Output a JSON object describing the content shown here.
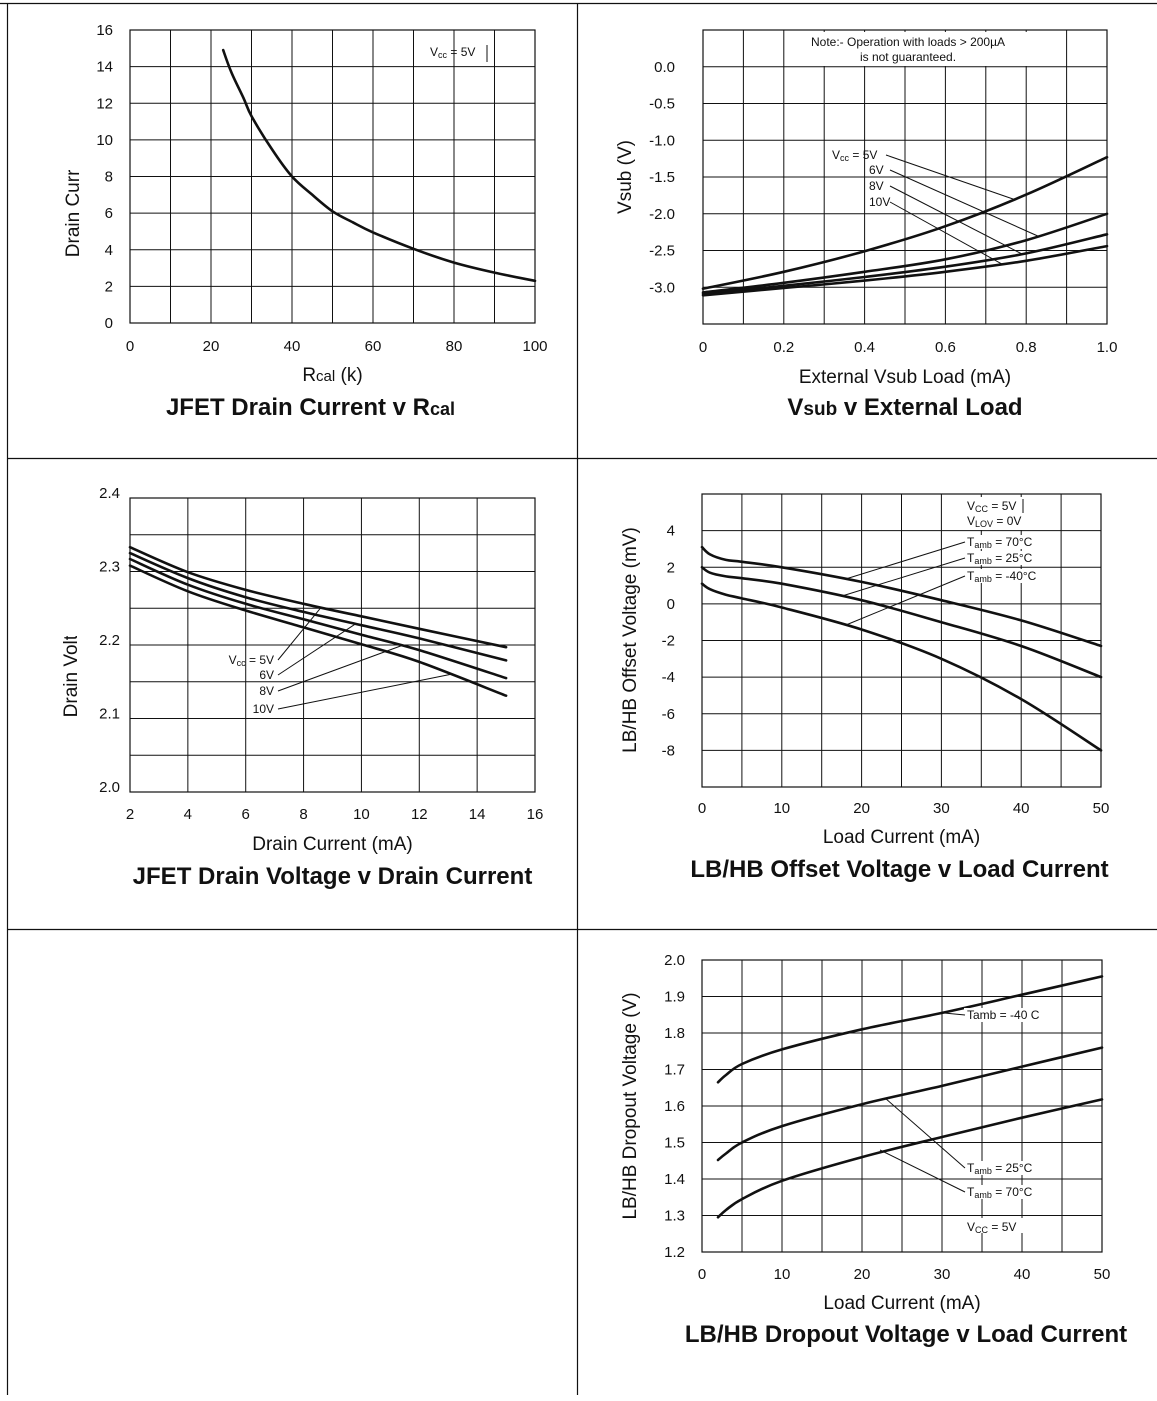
{
  "chart_data": [
    {
      "type": "line",
      "title": "JFET Drain Current v Rcal",
      "xlabel": "Rcal (k)",
      "ylabel": "Drain Current (mA)",
      "xlim": [
        0,
        100
      ],
      "ylim": [
        0,
        16
      ],
      "xticks": [
        0,
        20,
        40,
        60,
        80,
        100
      ],
      "yticks": [
        0,
        2,
        4,
        6,
        8,
        10,
        12,
        14,
        16
      ],
      "grid": true,
      "series": [
        {
          "x": [
            23,
            25,
            28,
            30,
            35,
            40,
            45,
            50,
            55,
            60,
            70,
            80,
            90,
            100
          ],
          "y": [
            14.9,
            13.7,
            12.3,
            11.3,
            9.5,
            8.0,
            7.0,
            6.1,
            5.5,
            4.95,
            4.05,
            3.3,
            2.75,
            2.3
          ]
        }
      ],
      "annotations": [
        {
          "text": "Vcc = 5V"
        }
      ]
    },
    {
      "type": "line",
      "title": "Vsub v External Load",
      "xlabel": "External Vsub Load (mA)",
      "ylabel": "Vsub (V)",
      "xlim": [
        0,
        1.0
      ],
      "ylim": [
        -3.5,
        0.5
      ],
      "xticks": [
        0,
        0.2,
        0.4,
        0.6,
        0.8,
        1.0
      ],
      "xtick_labels": [
        "0",
        "0.2",
        "0.4",
        "0.6",
        "0.8",
        "1.0"
      ],
      "yticks": [
        0.0,
        -0.5,
        -1.0,
        -1.5,
        -2.0,
        -2.5,
        -3.0
      ],
      "ytick_labels": [
        "0.0",
        "-0.5",
        "-1.0",
        "-1.5",
        "-2.0",
        "-2.5",
        "-3.0"
      ],
      "grid": true,
      "note": [
        "Note:- Operation with loads > 200µA",
        "is not guaranteed."
      ],
      "series": [
        {
          "name": "Vcc = 5V",
          "x": [
            0,
            0.2,
            0.4,
            0.6,
            0.8,
            1.0
          ],
          "y": [
            -3.02,
            -2.79,
            -2.51,
            -2.17,
            -1.74,
            -1.23
          ]
        },
        {
          "name": "6V",
          "x": [
            0,
            0.2,
            0.4,
            0.6,
            0.8,
            1.0
          ],
          "y": [
            -3.07,
            -2.94,
            -2.79,
            -2.62,
            -2.36,
            -2.0
          ]
        },
        {
          "name": "8V",
          "x": [
            0,
            0.2,
            0.4,
            0.6,
            0.8,
            1.0
          ],
          "y": [
            -3.09,
            -2.98,
            -2.86,
            -2.72,
            -2.54,
            -2.28
          ]
        },
        {
          "name": "10V",
          "x": [
            0,
            0.2,
            0.4,
            0.6,
            0.8,
            1.0
          ],
          "y": [
            -3.11,
            -3.01,
            -2.91,
            -2.79,
            -2.64,
            -2.44
          ]
        }
      ]
    },
    {
      "type": "line",
      "title": "JFET Drain Voltage v Drain Current",
      "xlabel": "Drain Current (mA)",
      "ylabel": "Drain Voltage (V)",
      "xlim": [
        2,
        16
      ],
      "ylim": [
        2.0,
        2.4
      ],
      "xticks": [
        2,
        4,
        6,
        8,
        10,
        12,
        14,
        16
      ],
      "yticks": [
        2.0,
        2.1,
        2.2,
        2.3,
        2.4
      ],
      "ytick_labels": [
        "2.0",
        "2.1",
        "2.2",
        "2.3",
        "2.4"
      ],
      "grid": true,
      "series": [
        {
          "name": "Vcc = 5V",
          "x": [
            2,
            4,
            6,
            8,
            10,
            12,
            15
          ],
          "y": [
            2.333,
            2.299,
            2.275,
            2.256,
            2.239,
            2.222,
            2.197
          ]
        },
        {
          "name": "6V",
          "x": [
            2,
            4,
            6,
            8,
            10,
            12,
            15
          ],
          "y": [
            2.325,
            2.291,
            2.265,
            2.245,
            2.227,
            2.209,
            2.179
          ]
        },
        {
          "name": "8V",
          "x": [
            2,
            4,
            6,
            8,
            10,
            12,
            15
          ],
          "y": [
            2.317,
            2.282,
            2.256,
            2.235,
            2.214,
            2.193,
            2.155
          ]
        },
        {
          "name": "10V",
          "x": [
            2,
            4,
            6,
            8,
            10,
            12,
            15
          ],
          "y": [
            2.308,
            2.273,
            2.247,
            2.224,
            2.201,
            2.177,
            2.131
          ]
        }
      ]
    },
    {
      "type": "line",
      "title": "LB/HB Offset Voltage v Load Current",
      "xlabel": "Load Current (mA)",
      "ylabel": "LB/HB Offset Voltage (mV)",
      "xlim": [
        0,
        50
      ],
      "ylim": [
        -10,
        6
      ],
      "xticks": [
        0,
        10,
        20,
        30,
        40,
        50
      ],
      "yticks": [
        4,
        2,
        0,
        -2,
        -4,
        -6,
        -8
      ],
      "grid": true,
      "legend_notes": [
        "VCC = 5V",
        "VLOV = 0V"
      ],
      "series": [
        {
          "name": "Tamb = 70°C",
          "x": [
            0,
            1,
            3,
            5,
            10,
            20,
            30,
            40,
            50
          ],
          "y": [
            3.1,
            2.7,
            2.4,
            2.3,
            2.0,
            1.2,
            0.2,
            -0.9,
            -2.3
          ]
        },
        {
          "name": "Tamb = 25°C",
          "x": [
            0,
            1,
            3,
            5,
            10,
            20,
            30,
            40,
            50
          ],
          "y": [
            2.0,
            1.7,
            1.5,
            1.4,
            1.1,
            0.2,
            -1.0,
            -2.3,
            -4.0
          ]
        },
        {
          "name": "Tamb = -40°C",
          "x": [
            0,
            1,
            3,
            5,
            10,
            20,
            30,
            40,
            50
          ],
          "y": [
            1.1,
            0.8,
            0.5,
            0.3,
            -0.2,
            -1.4,
            -3.0,
            -5.2,
            -8.0
          ]
        }
      ]
    },
    {
      "type": "line",
      "title": "LB/HB Dropout Voltage v Load Current",
      "xlabel": "Load Current (mA)",
      "ylabel": "LB/HB Dropout Voltage (V)",
      "xlim": [
        0,
        50
      ],
      "ylim": [
        1.2,
        2.0
      ],
      "xticks": [
        0,
        10,
        20,
        30,
        40,
        50
      ],
      "yticks": [
        1.2,
        1.3,
        1.4,
        1.5,
        1.6,
        1.7,
        1.8,
        1.9,
        2.0
      ],
      "ytick_labels": [
        "1.2",
        "1.3",
        "1.4",
        "1.5",
        "1.6",
        "1.7",
        "1.8",
        "1.9",
        "2.0"
      ],
      "grid": true,
      "legend_notes": [
        "VCC = 5V"
      ],
      "series": [
        {
          "name": "Tamb = -40 C",
          "x": [
            2,
            3,
            5,
            10,
            20,
            30,
            40,
            50
          ],
          "y": [
            1.665,
            1.685,
            1.715,
            1.755,
            1.81,
            1.855,
            1.905,
            1.955
          ]
        },
        {
          "name": "Tamb = 25°C",
          "x": [
            2,
            3,
            5,
            10,
            20,
            30,
            40,
            50
          ],
          "y": [
            1.452,
            1.47,
            1.5,
            1.545,
            1.605,
            1.655,
            1.708,
            1.76
          ]
        },
        {
          "name": "Tamb = 70°C",
          "x": [
            2,
            3,
            5,
            10,
            20,
            30,
            40,
            50
          ],
          "y": [
            1.295,
            1.315,
            1.345,
            1.395,
            1.46,
            1.515,
            1.568,
            1.618
          ]
        }
      ]
    }
  ]
}
